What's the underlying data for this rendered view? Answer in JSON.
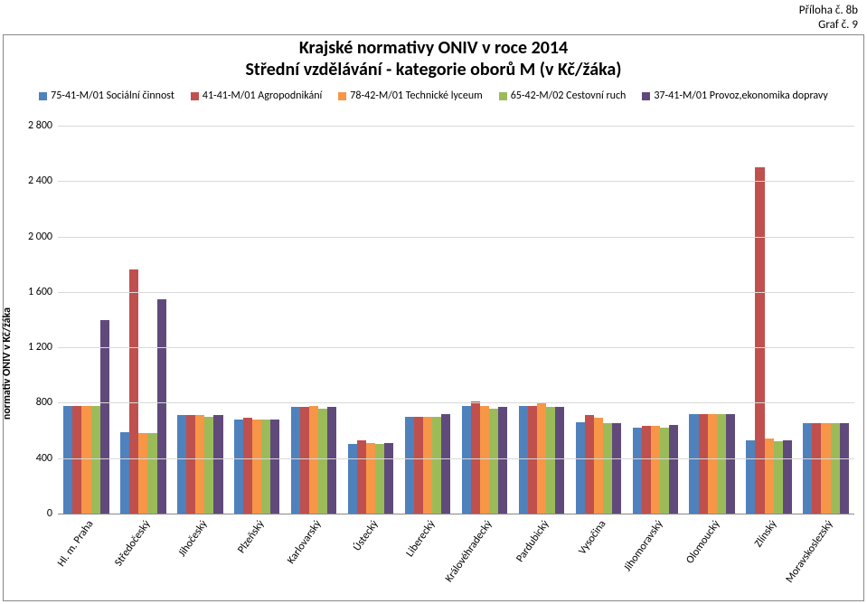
{
  "header": {
    "line1": "Příloha č. 8b",
    "line2": "Graf č. 9"
  },
  "chart": {
    "type": "bar",
    "title": "Krajské normativy ONIV v roce 2014",
    "subtitle": "Střední vzdělávání - kategorie oborů M (v Kč/žáka)",
    "title_fontsize": 20,
    "ylabel": "normativ ONIV v Kč/žáka",
    "label_fontsize": 12,
    "ylim": [
      0,
      2800
    ],
    "ytick_step": 400,
    "yticks": [
      "0",
      "400",
      "800",
      "1 200",
      "1 600",
      "2 000",
      "2 400",
      "2 800"
    ],
    "background_color": "#ffffff",
    "grid_color": "#d9d9d9",
    "axis_color": "#888888",
    "series": [
      {
        "label": "75-41-M/01 Sociální činnost",
        "color": "#4f81bd"
      },
      {
        "label": "41-41-M/01 Agropodnikání",
        "color": "#c0504d"
      },
      {
        "label": "78-42-M/01 Technické lyceum",
        "color": "#f79646"
      },
      {
        "label": "65-42-M/02 Cestovní ruch",
        "color": "#9bbb59"
      },
      {
        "label": "37-41-M/01 Provoz,ekonomika dopravy",
        "color": "#604a7b"
      }
    ],
    "categories": [
      "Hl. m. Praha",
      "Středočeský",
      "Jihočeský",
      "Plzeňský",
      "Karlovarský",
      "Ústecký",
      "Liberecký",
      "Královéhradecký",
      "Pardubický",
      "Vysočina",
      "Jihomoravský",
      "Olomoucký",
      "Zlínský",
      "Moravskoslezský"
    ],
    "values": [
      [
        780,
        780,
        780,
        780,
        1400
      ],
      [
        590,
        1760,
        580,
        580,
        1550
      ],
      [
        710,
        710,
        710,
        700,
        710
      ],
      [
        680,
        690,
        680,
        680,
        680
      ],
      [
        770,
        770,
        780,
        760,
        770
      ],
      [
        500,
        530,
        510,
        500,
        510
      ],
      [
        700,
        700,
        700,
        700,
        720
      ],
      [
        780,
        810,
        780,
        760,
        770
      ],
      [
        780,
        780,
        800,
        770,
        770
      ],
      [
        660,
        710,
        690,
        650,
        650
      ],
      [
        620,
        630,
        630,
        620,
        640
      ],
      [
        720,
        720,
        720,
        720,
        720
      ],
      [
        530,
        2500,
        540,
        520,
        530
      ],
      [
        650,
        650,
        650,
        650,
        650
      ]
    ],
    "bar_width": 0.8
  }
}
